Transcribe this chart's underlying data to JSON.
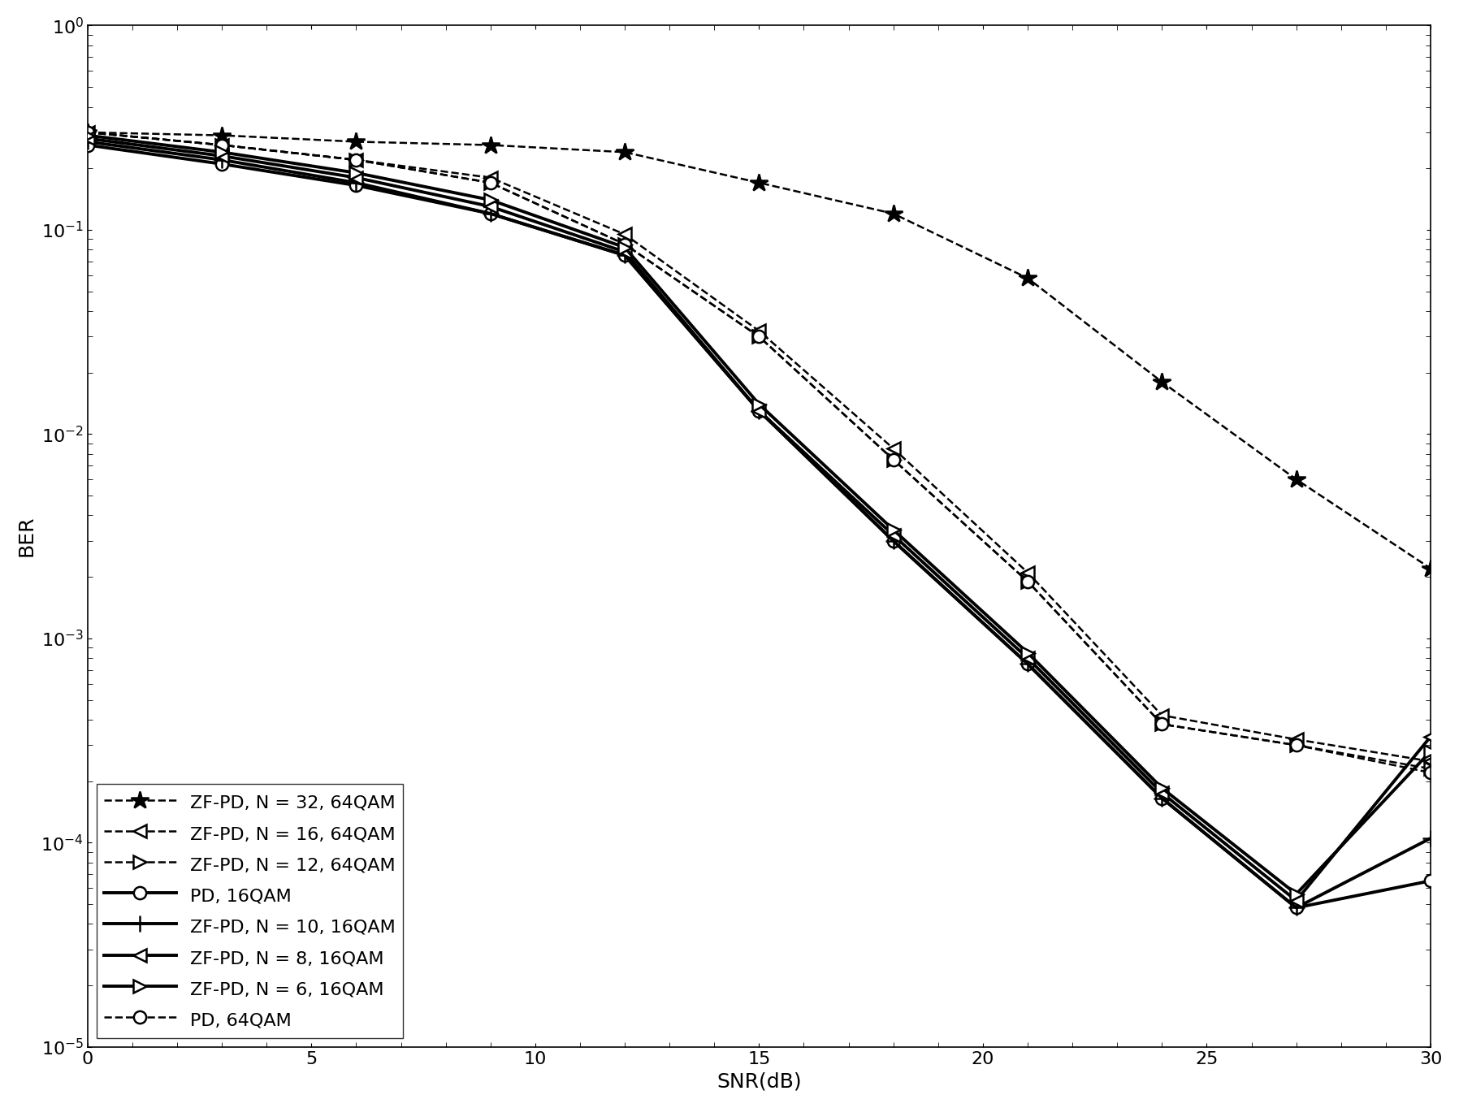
{
  "title": "",
  "xlabel": "SNR(dB)",
  "ylabel": "BER",
  "xlim": [
    0,
    30
  ],
  "ylim_log": [
    -5,
    0
  ],
  "series": [
    {
      "label": "ZF-PD, N = 32, 64QAM",
      "x": [
        0,
        3,
        6,
        9,
        12,
        15,
        18,
        21,
        24,
        27,
        30
      ],
      "y": [
        0.3,
        0.29,
        0.27,
        0.26,
        0.24,
        0.17,
        0.12,
        0.058,
        0.018,
        0.006,
        0.0022
      ],
      "color": "#000000",
      "linestyle": "dashed",
      "marker": "*",
      "linewidth": 1.8,
      "markersize": 16,
      "markerfill": "black",
      "zorder": 2
    },
    {
      "label": "ZF-PD, N = 16, 64QAM",
      "x": [
        0,
        3,
        6,
        9,
        12,
        15,
        18,
        21,
        24,
        27,
        30
      ],
      "y": [
        0.3,
        0.26,
        0.22,
        0.18,
        0.095,
        0.032,
        0.0085,
        0.0021,
        0.00042,
        0.00032,
        0.00025
      ],
      "color": "#000000",
      "linestyle": "dashed",
      "marker": "<",
      "linewidth": 1.8,
      "markersize": 11,
      "markerfill": "white",
      "zorder": 2
    },
    {
      "label": "ZF-PD, N = 12, 64QAM",
      "x": [
        0,
        3,
        6,
        9,
        12,
        15,
        18,
        21,
        24,
        27,
        30
      ],
      "y": [
        0.3,
        0.26,
        0.22,
        0.17,
        0.085,
        0.03,
        0.0075,
        0.0019,
        0.00038,
        0.0003,
        0.00023
      ],
      "color": "#000000",
      "linestyle": "dashed",
      "marker": ">",
      "linewidth": 1.8,
      "markersize": 11,
      "markerfill": "white",
      "zorder": 2
    },
    {
      "label": "PD, 16QAM",
      "x": [
        0,
        3,
        6,
        9,
        12,
        15,
        18,
        21,
        24,
        27,
        30
      ],
      "y": [
        0.26,
        0.21,
        0.165,
        0.12,
        0.075,
        0.013,
        0.003,
        0.00075,
        0.000165,
        4.8e-05,
        6.5e-05
      ],
      "color": "#000000",
      "linestyle": "solid",
      "marker": "o",
      "linewidth": 2.8,
      "markersize": 11,
      "markerfill": "white",
      "zorder": 3
    },
    {
      "label": "ZF-PD, N = 10, 16QAM",
      "x": [
        0,
        3,
        6,
        9,
        12,
        15,
        18,
        21,
        24,
        27,
        30
      ],
      "y": [
        0.27,
        0.22,
        0.17,
        0.12,
        0.075,
        0.013,
        0.003,
        0.00075,
        0.000165,
        4.8e-05,
        0.000105
      ],
      "color": "#000000",
      "linestyle": "solid",
      "marker": "+",
      "linewidth": 2.8,
      "markersize": 14,
      "markerfill": "black",
      "zorder": 3
    },
    {
      "label": "ZF-PD, N = 8, 16QAM",
      "x": [
        0,
        3,
        6,
        9,
        12,
        15,
        18,
        21,
        24,
        27,
        30
      ],
      "y": [
        0.28,
        0.23,
        0.18,
        0.13,
        0.078,
        0.013,
        0.0032,
        0.0008,
        0.000175,
        5.2e-05,
        0.00033
      ],
      "color": "#000000",
      "linestyle": "solid",
      "marker": "<",
      "linewidth": 2.8,
      "markersize": 11,
      "markerfill": "white",
      "zorder": 3
    },
    {
      "label": "ZF-PD, N = 6, 16QAM",
      "x": [
        0,
        3,
        6,
        9,
        12,
        15,
        18,
        21,
        24,
        27,
        30
      ],
      "y": [
        0.29,
        0.24,
        0.19,
        0.14,
        0.082,
        0.014,
        0.0034,
        0.00085,
        0.000185,
        5.6e-05,
        0.00028
      ],
      "color": "#000000",
      "linestyle": "solid",
      "marker": ">",
      "linewidth": 2.8,
      "markersize": 11,
      "markerfill": "white",
      "zorder": 3
    },
    {
      "label": "PD, 64QAM",
      "x": [
        0,
        3,
        6,
        9,
        12,
        15,
        18,
        21,
        24,
        27,
        30
      ],
      "y": [
        0.3,
        0.26,
        0.22,
        0.17,
        0.085,
        0.03,
        0.0075,
        0.0019,
        0.00038,
        0.0003,
        0.00022
      ],
      "color": "#000000",
      "linestyle": "dashed",
      "marker": "o",
      "linewidth": 1.8,
      "markersize": 11,
      "markerfill": "white",
      "zorder": 2
    }
  ],
  "legend_loc": "lower left",
  "legend_fontsize": 16,
  "tick_fontsize": 16,
  "label_fontsize": 18,
  "background_color": "#ffffff"
}
